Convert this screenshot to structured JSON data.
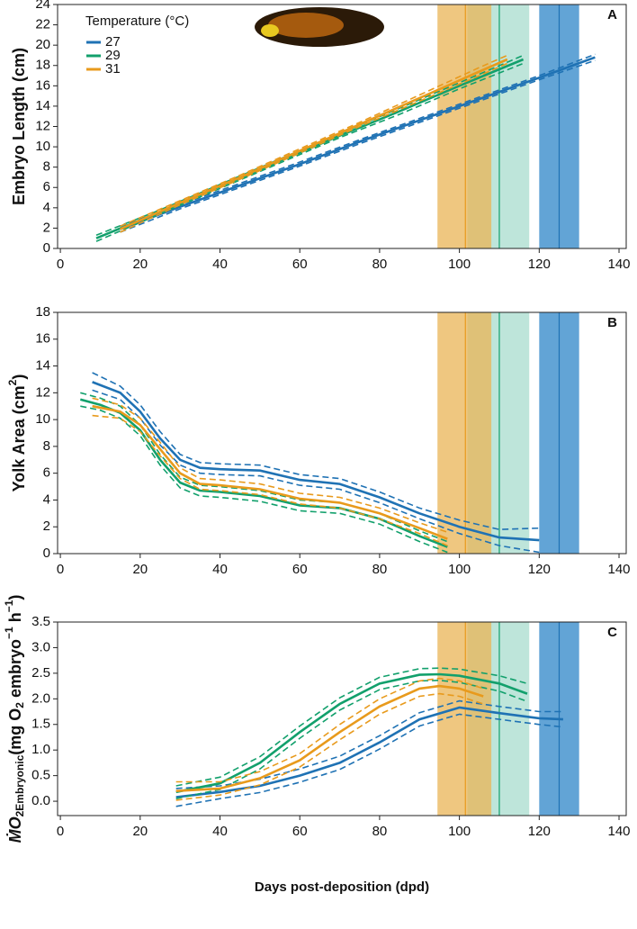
{
  "chart_data": [
    {
      "type": "line",
      "panel_label": "A",
      "y_label": [
        "Embryo Length (cm)"
      ],
      "legend_title": "Temperature (°C)",
      "legend": "top-left",
      "xlim": [
        -0.7,
        141.8
      ],
      "xticks": [
        0,
        20,
        40,
        60,
        80,
        100,
        120,
        140
      ],
      "ylim": [
        0,
        24
      ],
      "yticks": [
        0,
        2,
        4,
        6,
        8,
        10,
        12,
        14,
        16,
        18,
        20,
        22,
        24
      ],
      "bands": [
        {
          "color": "#2e86c8",
          "start": 120,
          "end": 130,
          "mean": 125
        },
        {
          "color": "#a8dccd",
          "start": 102,
          "end": 117.5,
          "mean": 110
        },
        {
          "color": "#eab455",
          "start": 94.5,
          "end": 108,
          "mean": 101.5
        }
      ],
      "series": [
        {
          "name": "27",
          "color": "#1f72b4",
          "x": [
            15,
            30,
            45,
            60,
            75,
            90,
            105,
            120,
            134
          ],
          "values": [
            1.9,
            4.1,
            6.2,
            8.3,
            10.5,
            12.6,
            14.7,
            16.8,
            18.8
          ],
          "lower": [
            1.6,
            3.9,
            6.0,
            8.1,
            10.3,
            12.4,
            14.5,
            16.6,
            18.5
          ],
          "upper": [
            2.2,
            4.3,
            6.4,
            8.5,
            10.7,
            12.8,
            14.9,
            17.0,
            19.1
          ]
        },
        {
          "name": "29",
          "color": "#12a06c",
          "x": [
            9,
            25,
            40,
            55,
            70,
            85,
            100,
            116
          ],
          "values": [
            1.0,
            3.6,
            6.1,
            8.6,
            11.1,
            13.5,
            16.0,
            18.6
          ],
          "lower": [
            0.7,
            3.4,
            5.9,
            8.4,
            10.9,
            13.2,
            15.7,
            18.2
          ],
          "upper": [
            1.3,
            3.8,
            6.3,
            8.8,
            11.3,
            13.8,
            16.3,
            19.0
          ]
        },
        {
          "name": "31",
          "color": "#e89a1c",
          "x": [
            15,
            30,
            45,
            60,
            75,
            90,
            105,
            112
          ],
          "values": [
            1.9,
            4.5,
            7.0,
            9.6,
            12.2,
            14.8,
            17.4,
            18.6
          ],
          "lower": [
            1.6,
            4.3,
            6.8,
            9.4,
            12.0,
            14.5,
            17.0,
            18.2
          ],
          "upper": [
            2.2,
            4.7,
            7.2,
            9.8,
            12.4,
            15.1,
            17.8,
            19.0
          ]
        }
      ]
    },
    {
      "type": "line",
      "panel_label": "B",
      "y_label": [
        "Yolk Area (cm",
        "2",
        ")"
      ],
      "xlim": [
        -0.7,
        141.8
      ],
      "xticks": [
        0,
        20,
        40,
        60,
        80,
        100,
        120,
        140
      ],
      "ylim": [
        0,
        18
      ],
      "yticks": [
        0,
        2,
        4,
        6,
        8,
        10,
        12,
        14,
        16,
        18
      ],
      "bands": [
        {
          "color": "#2e86c8",
          "start": 120,
          "end": 130,
          "mean": 125
        },
        {
          "color": "#a8dccd",
          "start": 102,
          "end": 117.5,
          "mean": 110
        },
        {
          "color": "#eab455",
          "start": 94.5,
          "end": 108,
          "mean": 101.5
        }
      ],
      "series": [
        {
          "color": "#1f72b4",
          "x": [
            8,
            15,
            20,
            25,
            30,
            35,
            40,
            50,
            60,
            70,
            80,
            90,
            100,
            110,
            120
          ],
          "values": [
            12.8,
            12.0,
            10.6,
            8.6,
            7.0,
            6.4,
            6.3,
            6.2,
            5.5,
            5.2,
            4.2,
            3.0,
            2.0,
            1.2,
            1.0
          ],
          "lower": [
            12.2,
            11.5,
            10.1,
            8.1,
            6.6,
            6.0,
            5.9,
            5.8,
            5.1,
            4.8,
            3.8,
            2.6,
            1.5,
            0.6,
            0.1
          ],
          "upper": [
            13.5,
            12.5,
            11.1,
            9.1,
            7.4,
            6.8,
            6.7,
            6.6,
            5.9,
            5.6,
            4.6,
            3.4,
            2.5,
            1.8,
            1.9
          ]
        },
        {
          "color": "#12a06c",
          "x": [
            5,
            10,
            15,
            20,
            25,
            30,
            35,
            40,
            50,
            60,
            70,
            80,
            90,
            97
          ],
          "values": [
            11.5,
            11.1,
            10.5,
            9.2,
            7.0,
            5.3,
            4.7,
            4.6,
            4.3,
            3.6,
            3.4,
            2.6,
            1.3,
            0.5
          ],
          "lower": [
            11.0,
            10.7,
            10.1,
            8.8,
            6.6,
            4.9,
            4.3,
            4.2,
            3.9,
            3.2,
            3.0,
            2.2,
            0.9,
            0.1
          ],
          "upper": [
            12.0,
            11.6,
            11.0,
            9.6,
            7.4,
            5.7,
            5.1,
            5.0,
            4.7,
            4.0,
            3.8,
            3.0,
            1.7,
            0.9
          ]
        },
        {
          "color": "#e89a1c",
          "x": [
            8,
            15,
            20,
            25,
            30,
            35,
            40,
            50,
            60,
            70,
            80,
            90,
            97
          ],
          "values": [
            11.0,
            10.6,
            9.6,
            7.8,
            6.0,
            5.2,
            5.1,
            4.8,
            4.1,
            3.8,
            3.0,
            1.9,
            1.1
          ],
          "lower": [
            10.3,
            10.1,
            9.1,
            7.3,
            5.6,
            4.8,
            4.7,
            4.4,
            3.7,
            3.4,
            2.6,
            1.5,
            0.6
          ],
          "upper": [
            11.6,
            11.1,
            10.1,
            8.3,
            6.4,
            5.6,
            5.5,
            5.2,
            4.5,
            4.2,
            3.4,
            2.3,
            1.6
          ]
        }
      ]
    },
    {
      "type": "line",
      "panel_label": "C",
      "y_label": [
        "ṀO",
        "2Embryonic",
        "(mg O",
        "2",
        " embryo",
        "−1",
        " h",
        "−1",
        ")"
      ],
      "x_label": "Days post-deposition (dpd)",
      "xlim": [
        -0.7,
        141.8
      ],
      "xticks": [
        0,
        20,
        40,
        60,
        80,
        100,
        120,
        140
      ],
      "ylim": [
        -0.28,
        3.5
      ],
      "yticks": [
        {
          "value": 0,
          "label": "0.0"
        },
        0.5,
        {
          "value": 1,
          "label": "1.0"
        },
        1.5,
        {
          "value": 2,
          "label": "2.0"
        },
        2.5,
        {
          "value": 3,
          "label": "3.0"
        },
        3.5
      ],
      "bands": [
        {
          "color": "#2e86c8",
          "start": 120,
          "end": 130,
          "mean": 125
        },
        {
          "color": "#a8dccd",
          "start": 102,
          "end": 117.5,
          "mean": 110
        },
        {
          "color": "#eab455",
          "start": 94.5,
          "end": 108,
          "mean": 101.5
        }
      ],
      "series": [
        {
          "color": "#1f72b4",
          "x": [
            29,
            40,
            50,
            60,
            70,
            80,
            90,
            100,
            110,
            120,
            126
          ],
          "values": [
            0.08,
            0.18,
            0.3,
            0.5,
            0.75,
            1.15,
            1.6,
            1.83,
            1.72,
            1.62,
            1.6
          ],
          "lower": [
            -0.1,
            0.05,
            0.17,
            0.37,
            0.62,
            1.02,
            1.47,
            1.7,
            1.6,
            1.5,
            1.45
          ],
          "upper": [
            0.25,
            0.3,
            0.43,
            0.63,
            0.88,
            1.28,
            1.73,
            1.96,
            1.85,
            1.75,
            1.75
          ]
        },
        {
          "color": "#12a06c",
          "x": [
            29,
            40,
            50,
            60,
            70,
            80,
            90,
            95,
            100,
            110,
            117
          ],
          "values": [
            0.18,
            0.35,
            0.75,
            1.35,
            1.9,
            2.3,
            2.47,
            2.48,
            2.45,
            2.3,
            2.1
          ],
          "lower": [
            0.05,
            0.23,
            0.63,
            1.23,
            1.78,
            2.18,
            2.35,
            2.36,
            2.32,
            2.15,
            1.95
          ],
          "upper": [
            0.3,
            0.47,
            0.87,
            1.47,
            2.02,
            2.42,
            2.59,
            2.6,
            2.58,
            2.45,
            2.3
          ]
        },
        {
          "color": "#e89a1c",
          "x": [
            29,
            40,
            50,
            60,
            70,
            80,
            90,
            95,
            100,
            106
          ],
          "values": [
            0.2,
            0.25,
            0.45,
            0.8,
            1.35,
            1.85,
            2.2,
            2.25,
            2.2,
            2.05
          ],
          "lower": [
            0.02,
            0.12,
            0.32,
            0.67,
            1.2,
            1.7,
            2.05,
            2.1,
            2.05,
            1.9
          ],
          "upper": [
            0.38,
            0.38,
            0.58,
            0.93,
            1.5,
            2.0,
            2.35,
            2.4,
            2.35,
            2.2
          ]
        }
      ]
    }
  ]
}
